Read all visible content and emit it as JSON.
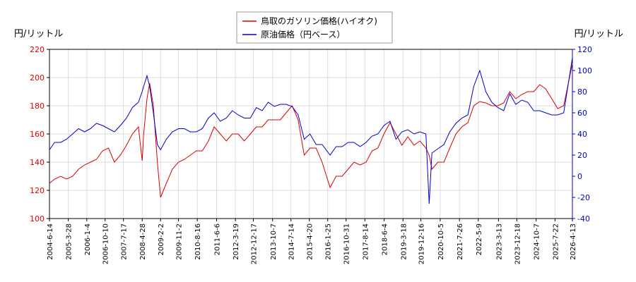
{
  "chart_data": {
    "type": "line",
    "ylabel": "円/リットル",
    "y2label": "円/リットル",
    "x": [
      "2004-6-14",
      "2004-9-1",
      "2004-12-1",
      "2005-3-1",
      "2005-6-1",
      "2005-9-1",
      "2005-12-1",
      "2006-3-1",
      "2006-6-1",
      "2006-9-1",
      "2006-12-1",
      "2007-3-1",
      "2007-6-1",
      "2007-9-1",
      "2007-12-1",
      "2008-3-1",
      "2008-4-28",
      "2008-5-20",
      "2008-7-10",
      "2008-8-20",
      "2008-10-15",
      "2008-12-15",
      "2009-2-2",
      "2009-5-1",
      "2009-8-1",
      "2009-11-1",
      "2010-2-1",
      "2010-5-1",
      "2010-8-1",
      "2010-11-1",
      "2011-2-1",
      "2011-5-1",
      "2011-8-1",
      "2011-11-1",
      "2012-2-1",
      "2012-5-1",
      "2012-8-1",
      "2012-11-1",
      "2013-2-1",
      "2013-5-1",
      "2013-8-1",
      "2013-11-1",
      "2014-2-1",
      "2014-5-1",
      "2014-8-1",
      "2014-11-1",
      "2015-2-1",
      "2015-5-1",
      "2015-8-1",
      "2015-11-1",
      "2016-3-1",
      "2016-6-1",
      "2016-9-1",
      "2016-12-1",
      "2017-3-1",
      "2017-6-1",
      "2017-9-1",
      "2017-12-1",
      "2018-3-1",
      "2018-6-1",
      "2018-9-1",
      "2018-12-1",
      "2019-3-1",
      "2019-6-1",
      "2019-9-1",
      "2019-12-1",
      "2020-3-1",
      "2020-4-20",
      "2020-6-1",
      "2020-9-1",
      "2020-12-1",
      "2021-3-1",
      "2021-6-1",
      "2021-9-1",
      "2021-12-1",
      "2022-3-1",
      "2022-6-1",
      "2022-9-1",
      "2022-12-1",
      "2023-3-1",
      "2023-6-1",
      "2023-9-1",
      "2023-12-1",
      "2024-3-1",
      "2024-6-1",
      "2024-9-1",
      "2024-12-1",
      "2025-3-1",
      "2025-6-1",
      "2025-9-1",
      "2025-12-1",
      "2026-4-13"
    ],
    "series": [
      {
        "name": "鳥取のガソリン価格(ハイオク)",
        "color": "#dd0000",
        "values": [
          125,
          128,
          130,
          128,
          130,
          135,
          138,
          140,
          142,
          148,
          150,
          140,
          145,
          152,
          160,
          165,
          141,
          160,
          185,
          196,
          180,
          140,
          115,
          125,
          135,
          140,
          142,
          145,
          148,
          148,
          155,
          165,
          160,
          155,
          160,
          160,
          155,
          160,
          165,
          165,
          170,
          170,
          170,
          175,
          180,
          170,
          145,
          150,
          150,
          140,
          122,
          130,
          130,
          135,
          140,
          138,
          140,
          148,
          150,
          160,
          168,
          160,
          152,
          158,
          152,
          155,
          150,
          145,
          135,
          140,
          140,
          150,
          160,
          165,
          168,
          180,
          183,
          182,
          180,
          180,
          182,
          190,
          185,
          188,
          190,
          190,
          195,
          192,
          185,
          178,
          180,
          210
        ]
      },
      {
        "name": "原油価格（円ベース）",
        "color": "#0000cc",
        "axis": "y2",
        "values": [
          25,
          32,
          32,
          35,
          40,
          45,
          42,
          45,
          50,
          48,
          45,
          42,
          48,
          55,
          65,
          70,
          80,
          85,
          95,
          85,
          60,
          30,
          25,
          35,
          42,
          45,
          45,
          42,
          42,
          45,
          55,
          60,
          52,
          55,
          62,
          58,
          55,
          55,
          65,
          62,
          70,
          66,
          68,
          68,
          66,
          58,
          35,
          40,
          30,
          30,
          20,
          28,
          28,
          32,
          32,
          28,
          32,
          38,
          40,
          48,
          52,
          35,
          42,
          44,
          40,
          42,
          40,
          -26,
          22,
          26,
          30,
          42,
          50,
          55,
          58,
          85,
          100,
          80,
          70,
          65,
          62,
          78,
          68,
          72,
          70,
          62,
          62,
          60,
          58,
          58,
          60,
          112
        ]
      }
    ],
    "xlim": [
      "2004-6-14",
      "2026-4-13"
    ],
    "xticks": [
      "2004-6-14",
      "2005-3-28",
      "2006-1-4",
      "2006-10-10",
      "2007-7-17",
      "2008-4-28",
      "2009-2-2",
      "2009-11-2",
      "2010-8-16",
      "2011-6-6",
      "2012-3-19",
      "2012-12-17",
      "2013-10-7",
      "2014-7-14",
      "2015-4-20",
      "2016-1-25",
      "2016-10-31",
      "2017-8-14",
      "2018-6-4",
      "2019-3-18",
      "2019-12-16",
      "2020-10-5",
      "2021-7-26",
      "2022-5-9",
      "2023-3-13",
      "2023-12-18",
      "2024-10-7",
      "2025-7-22",
      "2026-4-13"
    ],
    "ylim": [
      100,
      220
    ],
    "yticks": [
      100,
      120,
      140,
      160,
      180,
      200,
      220
    ],
    "y2lim": [
      -40,
      120
    ],
    "y2ticks": [
      -40,
      -20,
      0,
      20,
      40,
      60,
      80,
      100,
      120
    ],
    "grid": true,
    "legend": "upper center"
  }
}
